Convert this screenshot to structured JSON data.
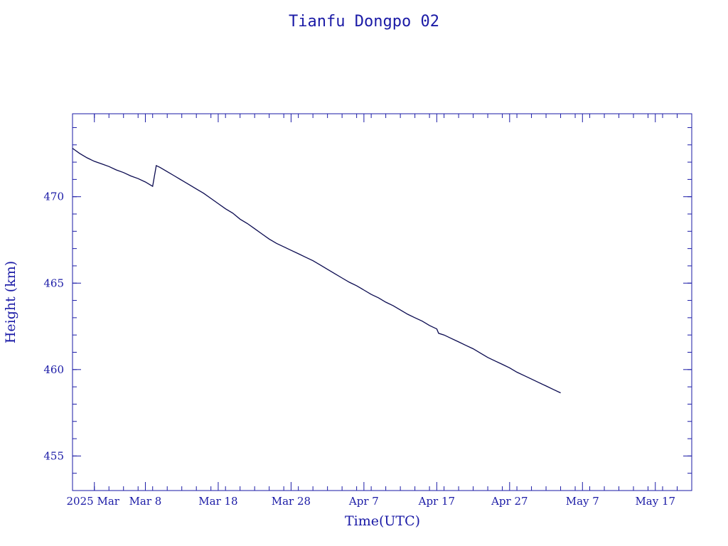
{
  "chart_data": {
    "type": "line",
    "title": "Tianfu Dongpo 02",
    "xlabel": "Time(UTC)",
    "ylabel": "Height (km)",
    "xlim": [
      "2025-02-26",
      "2025-05-22"
    ],
    "ylim": [
      453,
      474.8
    ],
    "grid": false,
    "colors": {
      "axis": "#1a1aa6",
      "line": "#0a0a50",
      "text": "#1a1aa6"
    },
    "x_ticks": [
      {
        "date": "2025-03-08",
        "label": "Mar  8"
      },
      {
        "date": "2025-03-18",
        "label": "Mar 18"
      },
      {
        "date": "2025-03-28",
        "label": "Mar 28"
      },
      {
        "date": "2025-04-07",
        "label": "Apr  7"
      },
      {
        "date": "2025-04-17",
        "label": "Apr 17"
      },
      {
        "date": "2025-04-27",
        "label": "Apr 27"
      },
      {
        "date": "2025-05-07",
        "label": "May  7"
      },
      {
        "date": "2025-05-17",
        "label": "May 17"
      }
    ],
    "x_prefix": {
      "date": "2025-03-01",
      "label": "2025 Mar"
    },
    "y_ticks": [
      455,
      460,
      465,
      470
    ],
    "series": [
      {
        "points": [
          [
            "2025-02-26",
            472.8
          ],
          [
            "2025-02-27",
            472.5
          ],
          [
            "2025-02-28",
            472.25
          ],
          [
            "2025-03-01",
            472.05
          ],
          [
            "2025-03-02",
            471.9
          ],
          [
            "2025-03-03",
            471.75
          ],
          [
            "2025-03-04",
            471.55
          ],
          [
            "2025-03-05",
            471.4
          ],
          [
            "2025-03-06",
            471.2
          ],
          [
            "2025-03-07",
            471.05
          ],
          [
            "2025-03-08",
            470.85
          ],
          [
            "2025-03-09",
            470.6
          ],
          [
            "2025-03-09T12:00",
            471.8
          ],
          [
            "2025-03-10",
            471.7
          ],
          [
            "2025-03-11",
            471.45
          ],
          [
            "2025-03-12",
            471.2
          ],
          [
            "2025-03-13",
            470.95
          ],
          [
            "2025-03-14",
            470.7
          ],
          [
            "2025-03-15",
            470.45
          ],
          [
            "2025-03-16",
            470.2
          ],
          [
            "2025-03-17",
            469.9
          ],
          [
            "2025-03-18",
            469.6
          ],
          [
            "2025-03-19",
            469.3
          ],
          [
            "2025-03-20",
            469.05
          ],
          [
            "2025-03-21",
            468.7
          ],
          [
            "2025-03-22",
            468.45
          ],
          [
            "2025-03-23",
            468.15
          ],
          [
            "2025-03-24",
            467.85
          ],
          [
            "2025-03-25",
            467.55
          ],
          [
            "2025-03-26",
            467.3
          ],
          [
            "2025-03-27",
            467.1
          ],
          [
            "2025-03-28",
            466.9
          ],
          [
            "2025-03-29",
            466.7
          ],
          [
            "2025-03-30",
            466.5
          ],
          [
            "2025-03-31",
            466.3
          ],
          [
            "2025-04-01",
            466.05
          ],
          [
            "2025-04-02",
            465.8
          ],
          [
            "2025-04-03",
            465.55
          ],
          [
            "2025-04-04",
            465.3
          ],
          [
            "2025-04-05",
            465.05
          ],
          [
            "2025-04-06",
            464.85
          ],
          [
            "2025-04-07",
            464.6
          ],
          [
            "2025-04-08",
            464.35
          ],
          [
            "2025-04-09",
            464.15
          ],
          [
            "2025-04-10",
            463.9
          ],
          [
            "2025-04-11",
            463.7
          ],
          [
            "2025-04-12",
            463.45
          ],
          [
            "2025-04-13",
            463.2
          ],
          [
            "2025-04-14",
            463.0
          ],
          [
            "2025-04-15",
            462.8
          ],
          [
            "2025-04-16",
            462.55
          ],
          [
            "2025-04-17",
            462.35
          ],
          [
            "2025-04-17T06:00",
            462.1
          ],
          [
            "2025-04-18",
            462.0
          ],
          [
            "2025-04-19",
            461.8
          ],
          [
            "2025-04-20",
            461.6
          ],
          [
            "2025-04-21",
            461.4
          ],
          [
            "2025-04-22",
            461.2
          ],
          [
            "2025-04-23",
            460.95
          ],
          [
            "2025-04-24",
            460.7
          ],
          [
            "2025-04-25",
            460.5
          ],
          [
            "2025-04-26",
            460.3
          ],
          [
            "2025-04-27",
            460.1
          ],
          [
            "2025-04-28",
            459.85
          ],
          [
            "2025-04-29",
            459.65
          ],
          [
            "2025-04-30",
            459.45
          ],
          [
            "2025-05-01",
            459.25
          ],
          [
            "2025-05-02",
            459.05
          ],
          [
            "2025-05-03",
            458.85
          ],
          [
            "2025-05-04",
            458.65
          ]
        ]
      }
    ]
  }
}
